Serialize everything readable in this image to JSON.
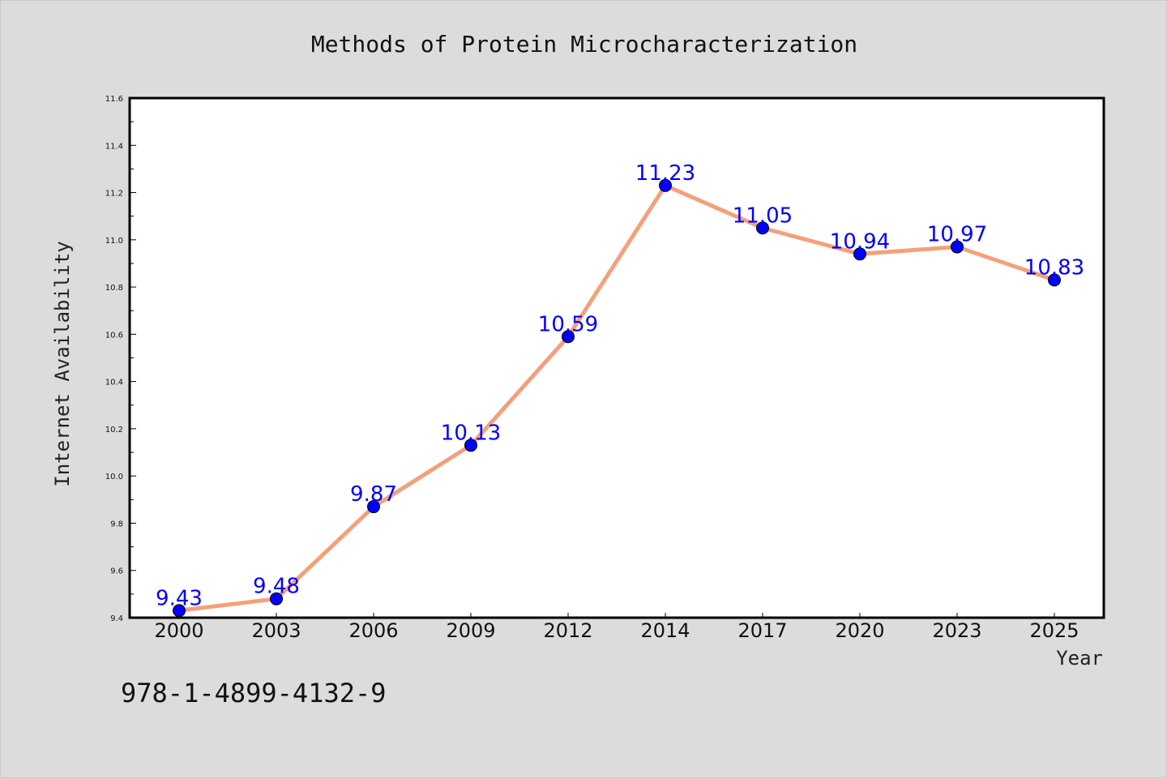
{
  "colors": {
    "background": "#dcdcdc",
    "plot_background": "#ffffff",
    "line": "#f4a07a",
    "marker": "#0000ff",
    "data_label": "#0000ff"
  },
  "footer_text": "978-1-4899-4132-9",
  "chart_data": {
    "type": "line",
    "title": "Methods of Protein Microcharacterization",
    "xlabel": "Year",
    "ylabel": "Internet Availability",
    "categories": [
      "2000",
      "2003",
      "2006",
      "2009",
      "2012",
      "2014",
      "2017",
      "2020",
      "2023",
      "2025"
    ],
    "series": [
      {
        "values": [
          9.43,
          9.48,
          9.87,
          10.13,
          10.59,
          11.23,
          11.05,
          10.94,
          10.97,
          10.83
        ]
      }
    ],
    "data_labels": [
      "9.43",
      "9.48",
      "9.87",
      "10.13",
      "10.59",
      "11.23",
      "11.05",
      "10.94",
      "10.97",
      "10.83"
    ],
    "ylim": [
      9.4,
      11.6
    ],
    "y_ticks": [
      "9.4",
      "9.6",
      "9.8",
      "10.0",
      "10.2",
      "10.4",
      "10.6",
      "10.8",
      "11.0",
      "11.2",
      "11.4",
      "11.6"
    ],
    "grid": false,
    "legend": "none"
  }
}
